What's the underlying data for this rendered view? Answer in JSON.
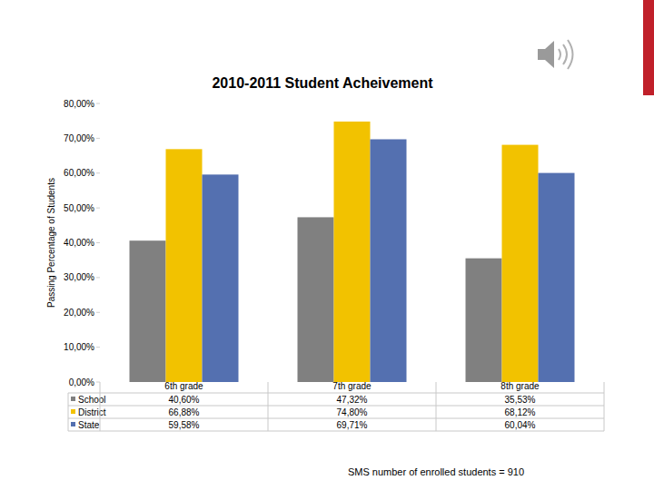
{
  "chart_data": {
    "type": "bar",
    "title": "2010-2011 Student Acheivement",
    "y_label": "Passing Percentage of Students",
    "annotations": [
      "SMS number of enrolled students = 910"
    ],
    "categories": [
      "6th grade",
      "7th grade",
      "8th grade"
    ],
    "series": [
      {
        "name": "School",
        "color": "#808080",
        "values": [
          40.6,
          47.32,
          35.53
        ],
        "value_labels": [
          "40,60%",
          "47,32%",
          "35,53%"
        ]
      },
      {
        "name": "District",
        "color": "#f2c200",
        "values": [
          66.88,
          74.8,
          68.12
        ],
        "value_labels": [
          "66,88%",
          "74,80%",
          "68,12%"
        ]
      },
      {
        "name": "State",
        "color": "#5470b0",
        "values": [
          59.58,
          69.71,
          60.04
        ],
        "value_labels": [
          "59,58%",
          "69,71%",
          "60,04%"
        ]
      }
    ],
    "ylim": [
      0,
      80
    ],
    "yticks": [
      {
        "value": 0,
        "label": "0,00%"
      },
      {
        "value": 10,
        "label": "10,00%"
      },
      {
        "value": 20,
        "label": "20,00%"
      },
      {
        "value": 30,
        "label": "30,00%"
      },
      {
        "value": 40,
        "label": "40,00%"
      },
      {
        "value": 50,
        "label": "50,00%"
      },
      {
        "value": 60,
        "label": "60,00%"
      },
      {
        "value": 70,
        "label": "70,00%"
      },
      {
        "value": 80,
        "label": "80,00%"
      }
    ],
    "grid": false
  }
}
